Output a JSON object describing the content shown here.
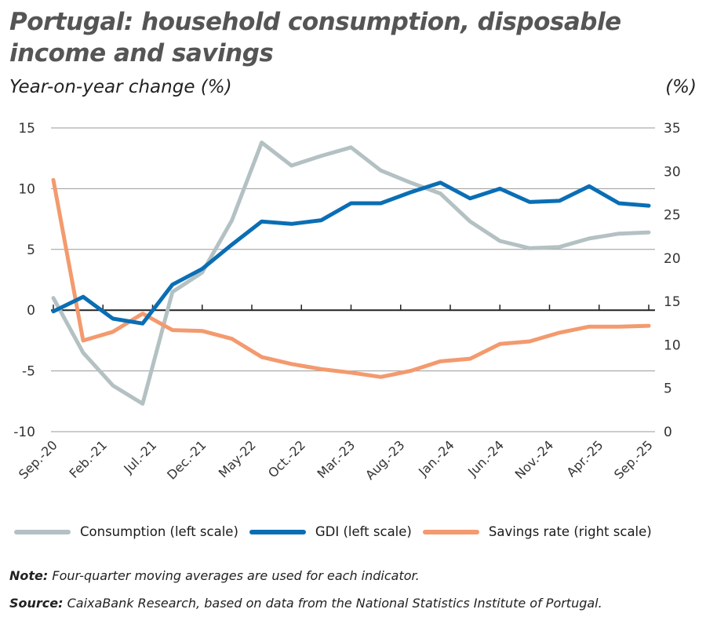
{
  "title_line1": "Portugal: household consumption, disposable",
  "title_line2": "income and savings",
  "subtitle": "Year-on-year change (%)",
  "right_unit": "(%)",
  "note_label": "Note:",
  "note_text": "Four-quarter moving averages are used for each indicator.",
  "source_label": "Source:",
  "source_text": "CaixaBank Research, based on data from the National Statistics Institute of Portugal.",
  "colors": {
    "consumption": "#b4c1c3",
    "gdi": "#0a6eb4",
    "savings": "#f39a6e"
  },
  "chart_data": {
    "type": "line",
    "x_tick_labels": [
      "Sep.-20",
      "Feb.-21",
      "Jul.-21",
      "Dec.-21",
      "May-22",
      "Oct.-22",
      "Mar.-23",
      "Aug.-23",
      "Jan.-24",
      "Jun.-24",
      "Nov.-24",
      "Apr.-25",
      "Sep.-25"
    ],
    "x": [
      "Sep.-20",
      "Dec.-20",
      "Mar.-21",
      "Jun.-21",
      "Sep.-21",
      "Dec.-21",
      "Mar.-22",
      "Jun.-22",
      "Sep.-22",
      "Dec.-22",
      "Mar.-23",
      "Jun.-23",
      "Sep.-23",
      "Dec.-23",
      "Mar.-24",
      "Jun.-24",
      "Sep.-24",
      "Dec.-24",
      "Mar.-25",
      "Jun.-25",
      "Sep.-25"
    ],
    "left_axis": {
      "ylim": [
        -10,
        15
      ],
      "ticks": [
        15,
        10,
        5,
        0,
        -5,
        -10
      ]
    },
    "right_axis": {
      "ylim": [
        0,
        35
      ],
      "ticks": [
        35,
        30,
        25,
        20,
        15,
        10,
        5,
        0
      ]
    },
    "grid": true,
    "legend_placement": "bottom",
    "series": [
      {
        "name": "Consumption (left scale)",
        "axis": "left",
        "color": "#b4c1c3",
        "values": [
          1.0,
          -3.5,
          -6.2,
          -7.7,
          1.5,
          3.1,
          7.4,
          13.8,
          11.9,
          12.7,
          13.4,
          11.5,
          10.5,
          9.6,
          7.3,
          5.7,
          5.1,
          5.2,
          5.9,
          6.3,
          6.4
        ]
      },
      {
        "name": "GDI (left scale)",
        "axis": "left",
        "color": "#0a6eb4",
        "values": [
          -0.1,
          1.1,
          -0.7,
          -1.1,
          2.1,
          3.4,
          5.4,
          7.3,
          7.1,
          7.4,
          8.8,
          8.8,
          9.7,
          10.5,
          9.2,
          10.0,
          8.9,
          9.0,
          10.2,
          8.8,
          8.6
        ]
      },
      {
        "name": "Savings rate (right scale)",
        "axis": "right",
        "color": "#f39a6e",
        "values": [
          29.0,
          10.5,
          11.5,
          13.6,
          11.7,
          11.6,
          10.7,
          8.6,
          7.8,
          7.2,
          6.8,
          6.3,
          7.0,
          8.1,
          8.4,
          10.1,
          10.4,
          11.4,
          12.1,
          12.1,
          12.2
        ]
      }
    ]
  }
}
